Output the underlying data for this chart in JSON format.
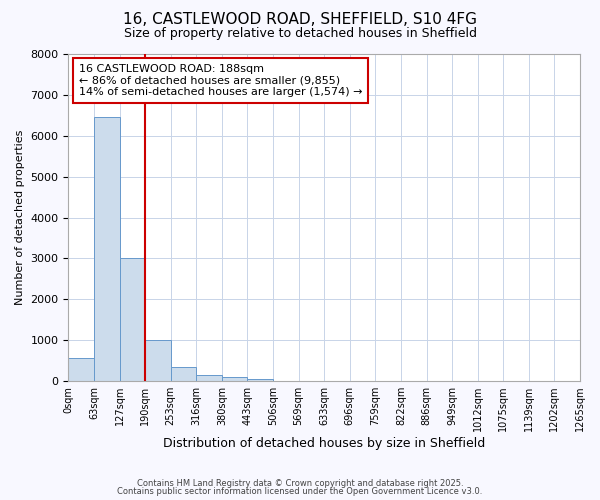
{
  "title1": "16, CASTLEWOOD ROAD, SHEFFIELD, S10 4FG",
  "title2": "Size of property relative to detached houses in Sheffield",
  "xlabel": "Distribution of detached houses by size in Sheffield",
  "ylabel": "Number of detached properties",
  "bar_values": [
    560,
    6450,
    3000,
    1000,
    350,
    150,
    90,
    60,
    0,
    0,
    0,
    0,
    0,
    0,
    0,
    0,
    0,
    0,
    0,
    0
  ],
  "bin_labels": [
    "0sqm",
    "63sqm",
    "127sqm",
    "190sqm",
    "253sqm",
    "316sqm",
    "380sqm",
    "443sqm",
    "506sqm",
    "569sqm",
    "633sqm",
    "696sqm",
    "759sqm",
    "822sqm",
    "886sqm",
    "949sqm",
    "1012sqm",
    "1075sqm",
    "1139sqm",
    "1202sqm",
    "1265sqm"
  ],
  "bar_color": "#ccdcec",
  "bar_edge_color": "#6699cc",
  "vline_color": "#cc0000",
  "ylim": [
    0,
    8000
  ],
  "yticks": [
    0,
    1000,
    2000,
    3000,
    4000,
    5000,
    6000,
    7000,
    8000
  ],
  "annotation_text": "16 CASTLEWOOD ROAD: 188sqm\n← 86% of detached houses are smaller (9,855)\n14% of semi-detached houses are larger (1,574) →",
  "annotation_box_facecolor": "#ffffff",
  "annotation_box_edgecolor": "#cc0000",
  "footer1": "Contains HM Land Registry data © Crown copyright and database right 2025.",
  "footer2": "Contains public sector information licensed under the Open Government Licence v3.0.",
  "fig_facecolor": "#f8f8ff",
  "axes_facecolor": "#ffffff",
  "grid_color": "#c8d4e8",
  "spine_color": "#aaaaaa",
  "title1_fontsize": 11,
  "title2_fontsize": 9,
  "ylabel_fontsize": 8,
  "xlabel_fontsize": 9,
  "ytick_fontsize": 8,
  "xtick_fontsize": 7,
  "annotation_fontsize": 8
}
